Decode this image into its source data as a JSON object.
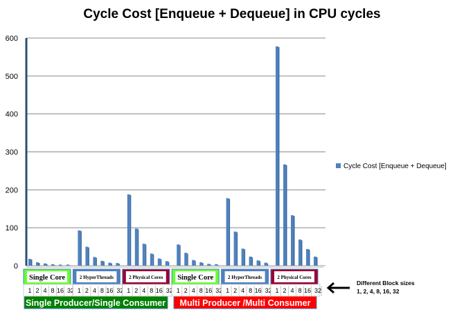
{
  "chart_data": {
    "type": "bar",
    "title": "Cycle Cost [Enqueue + Dequeue] in CPU cycles",
    "xlabel": "",
    "ylabel": "",
    "ylim": [
      0,
      600
    ],
    "yticks": [
      "0",
      "100",
      "200",
      "300",
      "400",
      "500",
      "600"
    ],
    "grid": true,
    "legend": {
      "placement": "right",
      "entries": [
        "Cycle Cost [Enqueue + Dequeue]"
      ]
    },
    "color": "#4f81bd",
    "block_sizes": [
      "1",
      "2",
      "4",
      "8",
      "16",
      "32"
    ],
    "categories": [
      {
        "name": "Single Producer/Single Consumer",
        "color": "#008000",
        "groups": [
          {
            "label": "Single Core",
            "color": "#66ff33",
            "values": [
              18,
              9,
              6,
              4,
              3,
              3
            ]
          },
          {
            "label": "2 HyperThreads",
            "color": "#4f81bd",
            "values": [
              93,
              50,
              23,
              13,
              8,
              7
            ]
          },
          {
            "label": "2 Physical Cores",
            "color": "#990033",
            "values": [
              188,
              98,
              58,
              32,
              19,
              12
            ]
          }
        ]
      },
      {
        "name": "Multi Producer /Multi Consumer",
        "color": "#ff0000",
        "groups": [
          {
            "label": "Single Core",
            "color": "#66ff33",
            "values": [
              56,
              34,
              15,
              9,
              5,
              4
            ]
          },
          {
            "label": "2 HyperThreads",
            "color": "#4f81bd",
            "values": [
              178,
              90,
              45,
              24,
              14,
              8
            ]
          },
          {
            "label": "2 Physical Cores",
            "color": "#990033",
            "values": [
              578,
              267,
              133,
              69,
              44,
              24
            ]
          }
        ]
      }
    ],
    "annotation": {
      "line1": "Different Block sizes",
      "line2": "1, 2, 4, 8, 16, 32"
    }
  }
}
